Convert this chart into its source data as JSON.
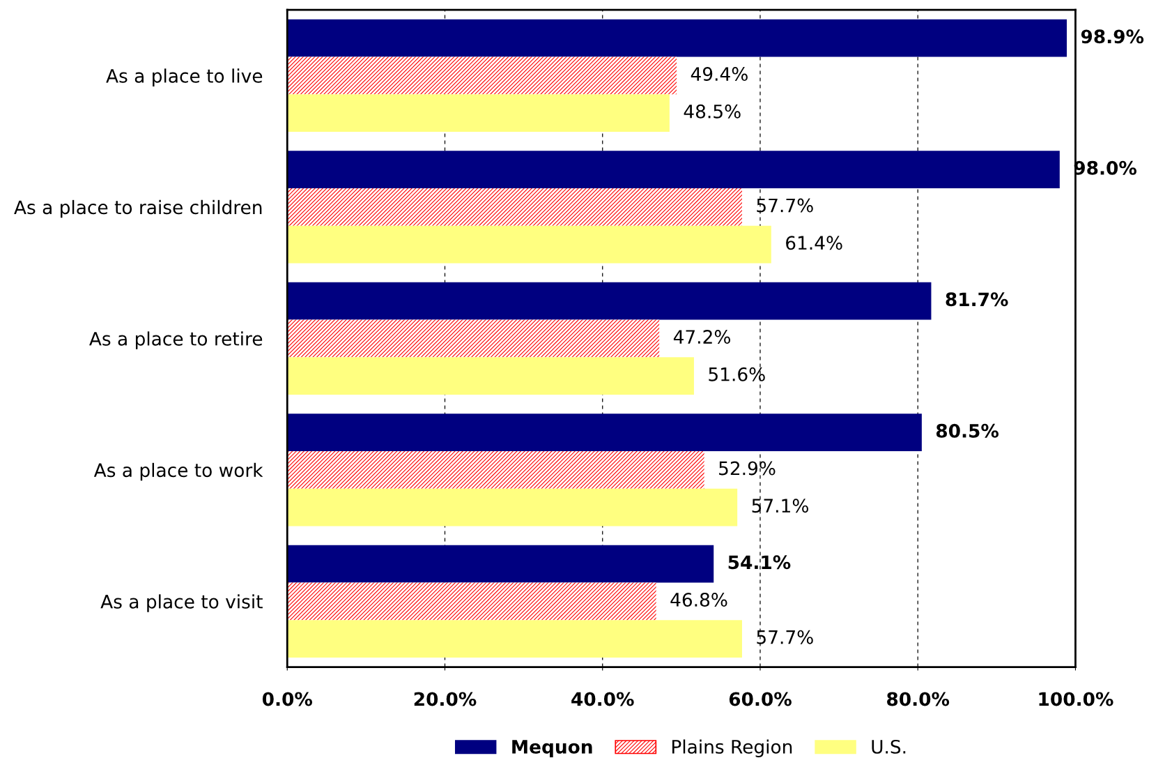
{
  "chart_data": {
    "type": "bar",
    "orientation": "horizontal",
    "categories": [
      "As a place to live",
      "As a place to raise children",
      "As a place to retire",
      "As a place to work",
      "As a place to visit"
    ],
    "series": [
      {
        "name": "Mequon",
        "color": "#000080",
        "values": [
          98.9,
          98.0,
          81.7,
          80.5,
          54.1
        ],
        "value_labels": [
          "98.9%",
          "98.0%",
          "81.7%",
          "80.5%",
          "54.1%"
        ]
      },
      {
        "name": "Plains Region",
        "color": "#ff0000",
        "values": [
          49.4,
          57.7,
          47.2,
          52.9,
          46.8
        ],
        "value_labels": [
          "49.4%",
          "57.7%",
          "47.2%",
          "52.9%",
          "46.8%"
        ]
      },
      {
        "name": "U.S.",
        "color": "#ffff80",
        "values": [
          48.5,
          61.4,
          51.6,
          57.1,
          57.7
        ],
        "value_labels": [
          "48.5%",
          "61.4%",
          "51.6%",
          "57.1%",
          "57.7%"
        ]
      }
    ],
    "xlim": [
      0,
      100
    ],
    "xticks": [
      {
        "value": 0,
        "label": "0.0%"
      },
      {
        "value": 20,
        "label": "20.0%"
      },
      {
        "value": 40,
        "label": "40.0%"
      },
      {
        "value": 60,
        "label": "60.0%"
      },
      {
        "value": 80,
        "label": "80.0%"
      },
      {
        "value": 100,
        "label": "100.0%"
      }
    ],
    "grid": "x",
    "legend": "bottom"
  }
}
